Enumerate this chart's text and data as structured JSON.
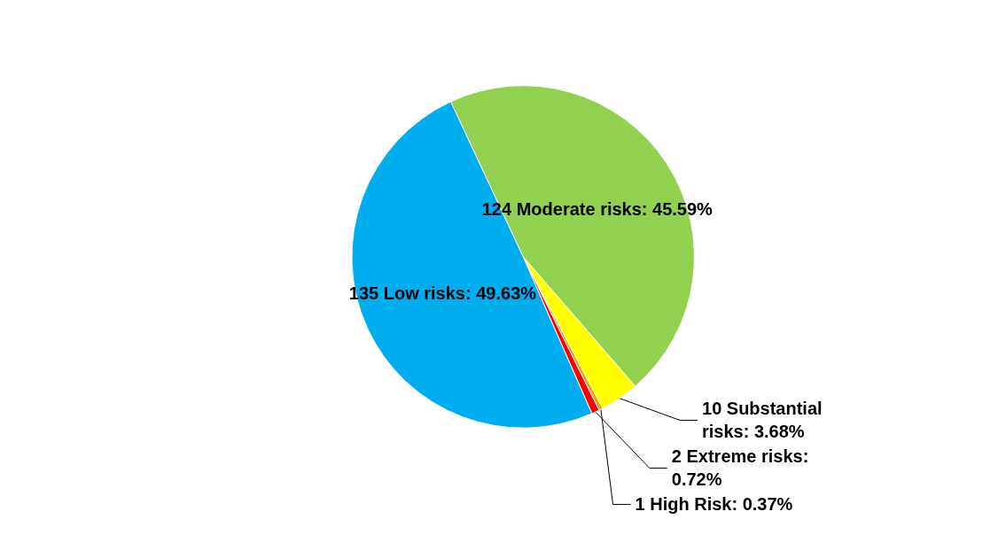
{
  "chart_data": {
    "type": "pie",
    "categories": [
      "124 Moderate risks: 45.59%",
      "10 Substantial risks: 3.68%",
      "1 High Risk: 0.37%",
      "2 Extreme risks: 0.72%",
      "135 Low risks: 49.63%"
    ],
    "values": [
      124,
      10,
      1,
      2,
      135
    ],
    "colors": [
      "#92d050",
      "#ffff00",
      "#f5a300",
      "#ff0000",
      "#00adef"
    ]
  }
}
